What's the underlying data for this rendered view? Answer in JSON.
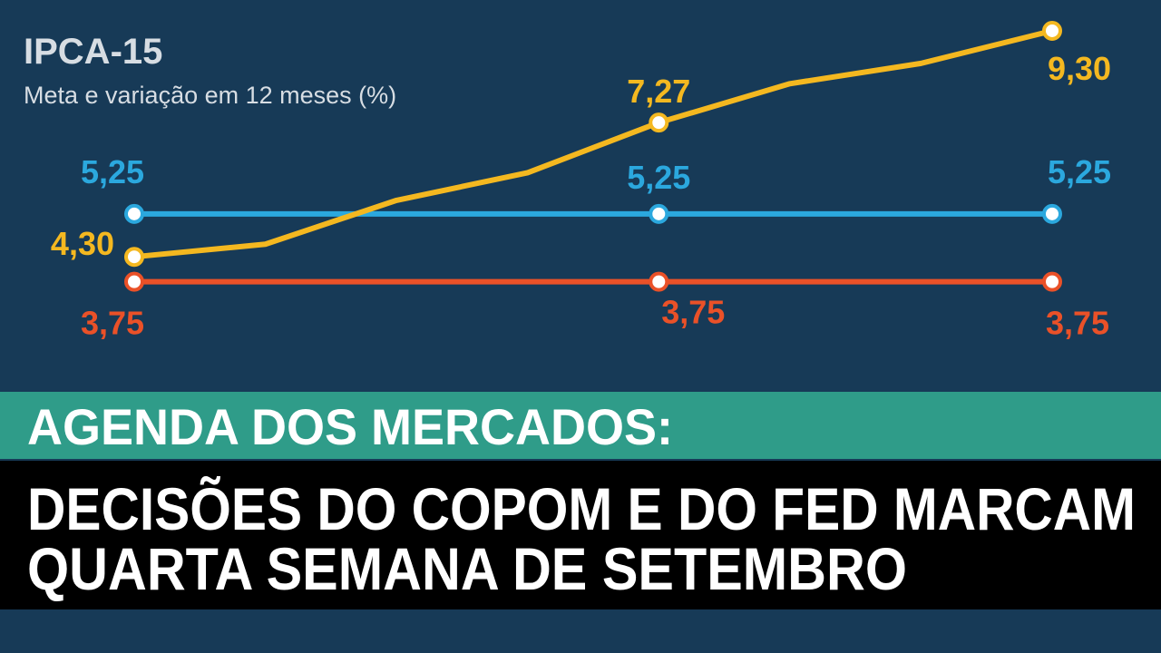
{
  "chart_data": {
    "type": "line",
    "title": "IPCA-15",
    "subtitle": "Meta e variação em 12 meses (%)",
    "categories": [
      null,
      null,
      null,
      null,
      null,
      null,
      null,
      null
    ],
    "ylim": [
      3.0,
      9.5
    ],
    "series": [
      {
        "color": "#2ba8de",
        "values": [
          5.25,
          5.25,
          5.25,
          5.25,
          5.25,
          5.25,
          5.25,
          5.25
        ],
        "value_labels": [
          "5,25",
          null,
          null,
          null,
          "5,25",
          null,
          null,
          "5,25"
        ]
      },
      {
        "color": "#ea5128",
        "values": [
          3.75,
          3.75,
          3.75,
          3.75,
          3.75,
          3.75,
          3.75,
          3.75
        ],
        "value_labels": [
          "3,75",
          null,
          null,
          null,
          "3,75",
          null,
          null,
          "3,75"
        ]
      },
      {
        "color": "#f4b820",
        "values": [
          4.3,
          4.58,
          5.55,
          6.16,
          7.27,
          8.13,
          8.58,
          9.3
        ],
        "value_labels": [
          "4,30",
          null,
          null,
          null,
          "7,27",
          null,
          null,
          "9,30"
        ]
      }
    ]
  },
  "banner": {
    "kicker": "AGENDA DOS MERCADOS:",
    "headline": [
      "DECISÕES DO COPOM E DO FED MARCAM",
      "QUARTA SEMANA DE SETEMBRO"
    ]
  }
}
